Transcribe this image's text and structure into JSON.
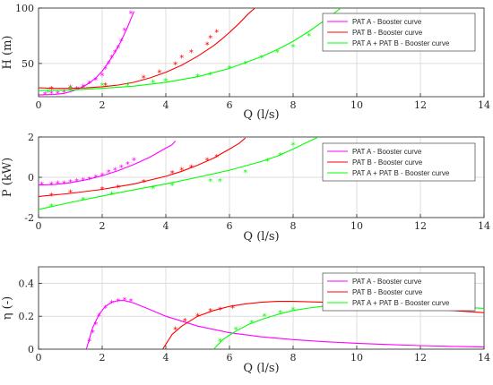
{
  "chart_data": [
    {
      "type": "line",
      "xlabel": "Q (l/s)",
      "ylabel": "H (m)",
      "xlim": [
        0,
        14
      ],
      "ylim": [
        20,
        100
      ],
      "xticks": [
        0,
        2,
        4,
        6,
        8,
        10,
        12,
        14
      ],
      "yticks": [
        50,
        100
      ],
      "yticklabels": [
        "50",
        "100"
      ],
      "grid": true,
      "legend": "top-right",
      "series": [
        {
          "name": "PAT A - Booster curve",
          "color": "#ff00ff",
          "marker": "*",
          "points": [
            [
              0.2,
              22
            ],
            [
              0.4,
              23
            ],
            [
              0.6,
              23
            ],
            [
              0.8,
              24
            ],
            [
              1.0,
              26
            ],
            [
              1.2,
              27
            ],
            [
              1.4,
              29
            ],
            [
              1.6,
              32
            ],
            [
              1.8,
              35
            ],
            [
              2.0,
              39
            ],
            [
              2.1,
              45
            ],
            [
              2.2,
              50
            ],
            [
              2.3,
              55
            ],
            [
              2.4,
              60
            ],
            [
              2.5,
              64
            ],
            [
              2.6,
              70
            ],
            [
              2.7,
              80
            ],
            [
              2.9,
              95
            ]
          ],
          "curve": [
            [
              0,
              21.5
            ],
            [
              0.5,
              22
            ],
            [
              0.8,
              23
            ],
            [
              1.0,
              24.5
            ],
            [
              1.2,
              26.5
            ],
            [
              1.4,
              29
            ],
            [
              1.6,
              32.5
            ],
            [
              1.8,
              37
            ],
            [
              2.0,
              43
            ],
            [
              2.2,
              51
            ],
            [
              2.4,
              60
            ],
            [
              2.6,
              70.5
            ],
            [
              2.8,
              83
            ],
            [
              2.9,
              90
            ],
            [
              3.0,
              97
            ]
          ]
        },
        {
          "name": "PAT B - Booster curve",
          "color": "#ff0000",
          "marker": "*",
          "points": [
            [
              0.4,
              27
            ],
            [
              1.0,
              28
            ],
            [
              2.1,
              30
            ],
            [
              3.3,
              37
            ],
            [
              3.8,
              42
            ],
            [
              4.3,
              49
            ],
            [
              4.5,
              55
            ],
            [
              4.8,
              60
            ],
            [
              5.3,
              67
            ],
            [
              5.4,
              73
            ],
            [
              5.6,
              78
            ]
          ],
          "curve": [
            [
              0,
              28
            ],
            [
              0.5,
              27.5
            ],
            [
              1,
              27.5
            ],
            [
              1.5,
              28
            ],
            [
              2,
              29
            ],
            [
              2.5,
              30.5
            ],
            [
              3,
              33
            ],
            [
              3.5,
              37
            ],
            [
              4,
              42
            ],
            [
              4.5,
              48.5
            ],
            [
              5,
              56.5
            ],
            [
              5.5,
              66
            ],
            [
              5.8,
              73
            ],
            [
              6,
              78
            ],
            [
              6.3,
              86
            ],
            [
              6.6,
              95
            ],
            [
              6.8,
              100
            ]
          ]
        },
        {
          "name": "PAT A + PAT B - Booster curve",
          "color": "#00ff00",
          "marker": "*",
          "points": [
            [
              0.3,
              24
            ],
            [
              1.0,
              27
            ],
            [
              2.0,
              30
            ],
            [
              2.8,
              30
            ],
            [
              3.6,
              33
            ],
            [
              4.0,
              34
            ],
            [
              5.0,
              38
            ],
            [
              5.4,
              40
            ],
            [
              6.0,
              46
            ],
            [
              6.5,
              50
            ],
            [
              7.0,
              55
            ],
            [
              7.5,
              60
            ],
            [
              8.0,
              65
            ],
            [
              8.5,
              75
            ]
          ],
          "curve": [
            [
              0,
              25.5
            ],
            [
              1,
              26
            ],
            [
              2,
              27.5
            ],
            [
              3,
              29.5
            ],
            [
              4,
              33
            ],
            [
              5,
              38
            ],
            [
              6,
              45.5
            ],
            [
              7,
              56
            ],
            [
              7.5,
              62.5
            ],
            [
              8,
              70
            ],
            [
              8.5,
              79
            ],
            [
              9,
              89
            ],
            [
              9.5,
              100
            ]
          ]
        }
      ]
    },
    {
      "type": "line",
      "xlabel": "Q (l/s)",
      "ylabel": "P (kW)",
      "xlim": [
        0,
        14
      ],
      "ylim": [
        -2,
        2
      ],
      "xticks": [
        0,
        2,
        4,
        6,
        8,
        10,
        12,
        14
      ],
      "yticks": [
        -2,
        0,
        2
      ],
      "yticklabels": [
        "-2",
        "0",
        "2"
      ],
      "grid": true,
      "legend": "top-right",
      "series": [
        {
          "name": "PAT A - Booster curve",
          "color": "#ff00ff",
          "marker": "*",
          "points": [
            [
              0.1,
              -0.35
            ],
            [
              0.4,
              -0.35
            ],
            [
              0.6,
              -0.3
            ],
            [
              0.8,
              -0.3
            ],
            [
              1.0,
              -0.25
            ],
            [
              1.2,
              -0.2
            ],
            [
              1.4,
              -0.15
            ],
            [
              1.6,
              -0.1
            ],
            [
              1.8,
              0.0
            ],
            [
              2.0,
              0.1
            ],
            [
              2.2,
              0.25
            ],
            [
              2.4,
              0.35
            ],
            [
              2.6,
              0.5
            ],
            [
              2.8,
              0.65
            ],
            [
              3.0,
              0.85
            ]
          ],
          "curve": [
            [
              0,
              -0.38
            ],
            [
              0.5,
              -0.36
            ],
            [
              1,
              -0.27
            ],
            [
              1.5,
              -0.12
            ],
            [
              2,
              0.07
            ],
            [
              2.5,
              0.33
            ],
            [
              3,
              0.64
            ],
            [
              3.5,
              1.0
            ],
            [
              4,
              1.45
            ],
            [
              4.2,
              1.62
            ],
            [
              4.3,
              1.8
            ]
          ]
        },
        {
          "name": "PAT B - Booster curve",
          "color": "#ff0000",
          "marker": "*",
          "points": [
            [
              0.4,
              -0.9
            ],
            [
              1.0,
              -0.75
            ],
            [
              2.0,
              -0.6
            ],
            [
              2.5,
              -0.5
            ],
            [
              3.3,
              -0.25
            ],
            [
              4.2,
              0.2
            ],
            [
              4.5,
              0.35
            ],
            [
              4.8,
              0.5
            ],
            [
              5.3,
              0.85
            ],
            [
              5.6,
              1.0
            ]
          ],
          "curve": [
            [
              0,
              -0.95
            ],
            [
              1,
              -0.8
            ],
            [
              2,
              -0.6
            ],
            [
              3,
              -0.33
            ],
            [
              4,
              0.05
            ],
            [
              4.5,
              0.3
            ],
            [
              5,
              0.6
            ],
            [
              5.5,
              0.95
            ],
            [
              6,
              1.4
            ],
            [
              6.3,
              1.68
            ],
            [
              6.5,
              1.95
            ]
          ]
        },
        {
          "name": "PAT A + PAT B - Booster curve",
          "color": "#00ff00",
          "marker": "*",
          "points": [
            [
              0.4,
              -1.45
            ],
            [
              1.4,
              -1.1
            ],
            [
              2.3,
              -0.85
            ],
            [
              3.6,
              -0.55
            ],
            [
              4.2,
              -0.4
            ],
            [
              5.4,
              -0.2
            ],
            [
              5.7,
              -0.2
            ],
            [
              6.5,
              0.25
            ],
            [
              7.2,
              0.8
            ],
            [
              7.6,
              1.1
            ],
            [
              8.0,
              1.6
            ]
          ],
          "curve": [
            [
              0,
              -1.6
            ],
            [
              1,
              -1.25
            ],
            [
              2,
              -0.93
            ],
            [
              3,
              -0.62
            ],
            [
              4,
              -0.33
            ],
            [
              5,
              0.0
            ],
            [
              6,
              0.35
            ],
            [
              7,
              0.78
            ],
            [
              7.5,
              1.05
            ],
            [
              8,
              1.4
            ],
            [
              8.5,
              1.78
            ],
            [
              8.8,
              2.0
            ]
          ]
        }
      ]
    },
    {
      "type": "line",
      "xlabel": "Q (l/s)",
      "ylabel": "η (-)",
      "xlim": [
        0,
        14
      ],
      "ylim": [
        0,
        0.5
      ],
      "xticks": [
        0,
        2,
        4,
        6,
        8,
        10,
        12,
        14
      ],
      "yticks": [
        0,
        0.2,
        0.4
      ],
      "yticklabels": [
        "0",
        "0.2",
        "0.4"
      ],
      "grid": true,
      "legend": "top-right",
      "series": [
        {
          "name": "PAT A - Booster curve",
          "color": "#ff00ff",
          "marker": "*",
          "points": [
            [
              1.6,
              0.05
            ],
            [
              1.7,
              0.1
            ],
            [
              1.8,
              0.15
            ],
            [
              1.9,
              0.2
            ],
            [
              2.1,
              0.25
            ],
            [
              2.3,
              0.28
            ],
            [
              2.5,
              0.29
            ],
            [
              2.7,
              0.3
            ],
            [
              2.9,
              0.29
            ]
          ],
          "curve": [
            [
              1.5,
              0.0
            ],
            [
              1.7,
              0.13
            ],
            [
              1.9,
              0.21
            ],
            [
              2.1,
              0.26
            ],
            [
              2.3,
              0.285
            ],
            [
              2.5,
              0.295
            ],
            [
              2.7,
              0.295
            ],
            [
              3,
              0.28
            ],
            [
              3.5,
              0.24
            ],
            [
              4,
              0.2
            ],
            [
              5,
              0.14
            ],
            [
              6,
              0.1
            ],
            [
              7,
              0.075
            ],
            [
              8,
              0.058
            ],
            [
              9,
              0.045
            ],
            [
              10,
              0.036
            ],
            [
              11,
              0.028
            ],
            [
              12,
              0.022
            ],
            [
              13,
              0.017
            ],
            [
              14,
              0.013
            ]
          ]
        },
        {
          "name": "PAT B - Booster curve",
          "color": "#ff0000",
          "marker": "*",
          "points": [
            [
              4.3,
              0.12
            ],
            [
              4.6,
              0.17
            ],
            [
              5.0,
              0.2
            ],
            [
              5.4,
              0.23
            ],
            [
              5.7,
              0.24
            ],
            [
              6.1,
              0.25
            ]
          ],
          "curve": [
            [
              3.9,
              0.0
            ],
            [
              4.2,
              0.09
            ],
            [
              4.5,
              0.14
            ],
            [
              5,
              0.2
            ],
            [
              5.5,
              0.235
            ],
            [
              6,
              0.26
            ],
            [
              6.5,
              0.275
            ],
            [
              7,
              0.285
            ],
            [
              7.5,
              0.29
            ],
            [
              8,
              0.29
            ],
            [
              9,
              0.285
            ],
            [
              10,
              0.275
            ],
            [
              11,
              0.262
            ],
            [
              12,
              0.25
            ],
            [
              13,
              0.235
            ],
            [
              14,
              0.222
            ]
          ]
        },
        {
          "name": "PAT A + PAT B - Booster curve",
          "color": "#00ff00",
          "marker": "*",
          "points": [
            [
              5.7,
              0.05
            ],
            [
              6.2,
              0.12
            ],
            [
              6.7,
              0.16
            ],
            [
              7.1,
              0.2
            ],
            [
              7.6,
              0.22
            ],
            [
              8.0,
              0.24
            ]
          ],
          "curve": [
            [
              5.5,
              0.0
            ],
            [
              5.8,
              0.06
            ],
            [
              6.2,
              0.11
            ],
            [
              6.6,
              0.15
            ],
            [
              7,
              0.18
            ],
            [
              7.5,
              0.21
            ],
            [
              8,
              0.235
            ],
            [
              8.5,
              0.25
            ],
            [
              9,
              0.262
            ],
            [
              10,
              0.272
            ],
            [
              11,
              0.272
            ],
            [
              12,
              0.266
            ],
            [
              13,
              0.258
            ],
            [
              14,
              0.248
            ]
          ]
        }
      ]
    }
  ]
}
